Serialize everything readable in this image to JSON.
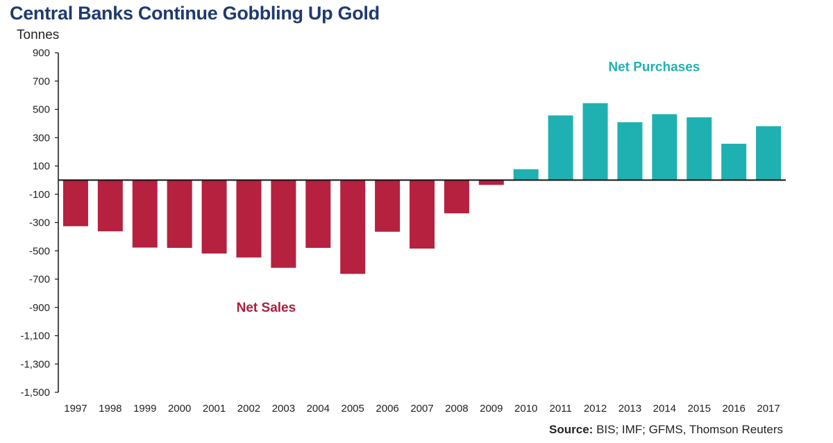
{
  "chart_data": {
    "type": "bar",
    "title": "Central Banks Continue Gobbling Up Gold",
    "ylabel": "Tonnes",
    "categories": [
      "1997",
      "1998",
      "1999",
      "2000",
      "2001",
      "2002",
      "2003",
      "2004",
      "2005",
      "2006",
      "2007",
      "2008",
      "2009",
      "2010",
      "2011",
      "2012",
      "2013",
      "2014",
      "2015",
      "2016",
      "2017"
    ],
    "values": [
      -326,
      -362,
      -477,
      -479,
      -519,
      -547,
      -620,
      -479,
      -663,
      -365,
      -484,
      -235,
      -34,
      77,
      457,
      544,
      409,
      466,
      444,
      257,
      381
    ],
    "ylim": [
      -1500,
      900
    ],
    "yticks": [
      "900",
      "700",
      "500",
      "300",
      "100",
      "-100",
      "-300",
      "-500",
      "-700",
      "-900",
      "-1,100",
      "-1,300",
      "-1,500"
    ],
    "ytick_values": [
      900,
      700,
      500,
      300,
      100,
      -100,
      -300,
      -500,
      -700,
      -900,
      -1100,
      -1300,
      -1500
    ],
    "annotations": {
      "net_sales": "Net Sales",
      "net_purchases": "Net Purchases"
    },
    "colors": {
      "negative": "#b5213e",
      "positive": "#1fb1b1",
      "net_sales_text": "#a91f3d",
      "net_purchases_text": "#22b0b0"
    },
    "grid": false,
    "legend": "none"
  },
  "source": {
    "label": "Source:",
    "text": " BIS; IMF; GFMS, Thomson Reuters"
  }
}
